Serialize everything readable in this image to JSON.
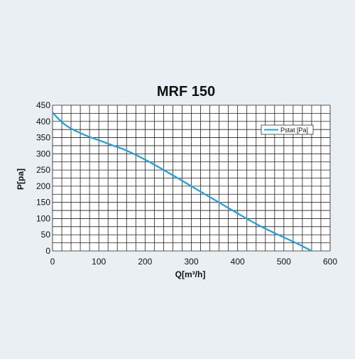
{
  "chart_data": {
    "type": "line",
    "title": "MRF 150",
    "xlabel": "Q[m³/h]",
    "ylabel": "P[pa]",
    "xlim": [
      0,
      600
    ],
    "ylim": [
      0,
      450
    ],
    "x_ticks": [
      0,
      100,
      200,
      300,
      400,
      500,
      600
    ],
    "y_ticks": [
      0,
      50,
      100,
      150,
      200,
      250,
      300,
      350,
      400,
      450
    ],
    "x_grid_step": 20,
    "y_grid_step": 25,
    "grid": true,
    "legend_position": "top-right",
    "series": [
      {
        "name": "Pstat [Pa]",
        "color": "#1ea0e0",
        "x": [
          0,
          10,
          25,
          40,
          60,
          80,
          100,
          130,
          160,
          200,
          250,
          300,
          350,
          400,
          450,
          500,
          530,
          560
        ],
        "y": [
          428,
          412,
          392,
          378,
          364,
          352,
          342,
          326,
          310,
          282,
          242,
          200,
          158,
          116,
          76,
          42,
          22,
          0
        ]
      }
    ]
  }
}
